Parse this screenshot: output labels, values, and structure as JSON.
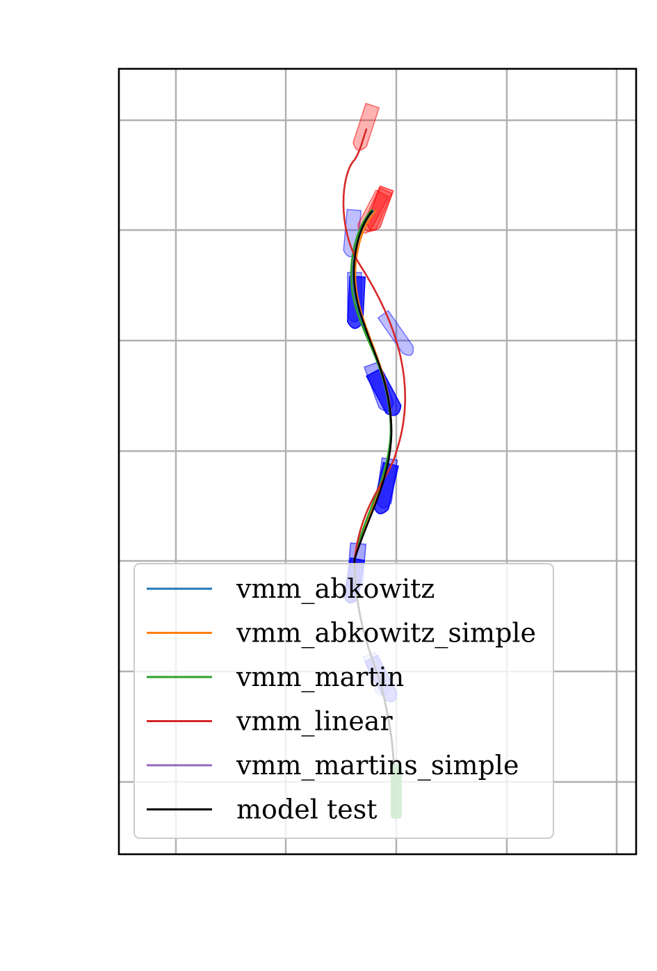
{
  "chart_data": {
    "type": "line",
    "title": "",
    "xlabel": "",
    "ylabel": "",
    "grid": true,
    "tick_labels_visible": false,
    "legend_placement": "lower-left",
    "series": [
      {
        "name": "vmm_abkowitz",
        "color": "#1f77b4"
      },
      {
        "name": "vmm_abkowitz_simple",
        "color": "#ff7f0e"
      },
      {
        "name": "vmm_martin",
        "color": "#2ca02c"
      },
      {
        "name": "vmm_linear",
        "color": "#d62728"
      },
      {
        "name": "vmm_martins_simple",
        "color": "#9467bd"
      },
      {
        "name": "model test",
        "color": "#000000"
      }
    ]
  }
}
